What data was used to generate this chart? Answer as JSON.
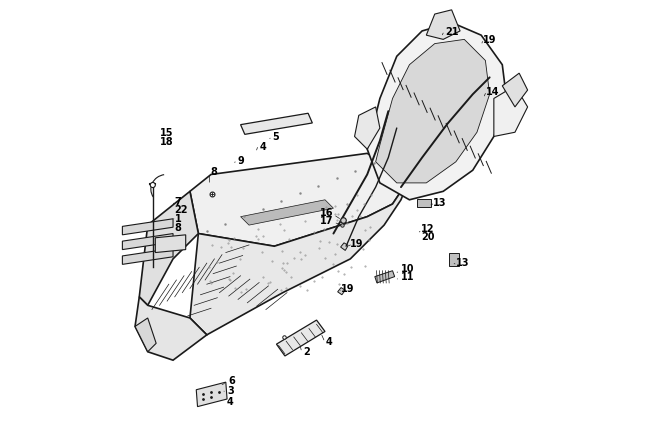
{
  "background_color": "#ffffff",
  "fig_width": 6.5,
  "fig_height": 4.46,
  "dpi": 100,
  "label_fontsize": 7,
  "label_color": "#000000",
  "line_color": "#1a1a1a",
  "line_width": 0.8
}
